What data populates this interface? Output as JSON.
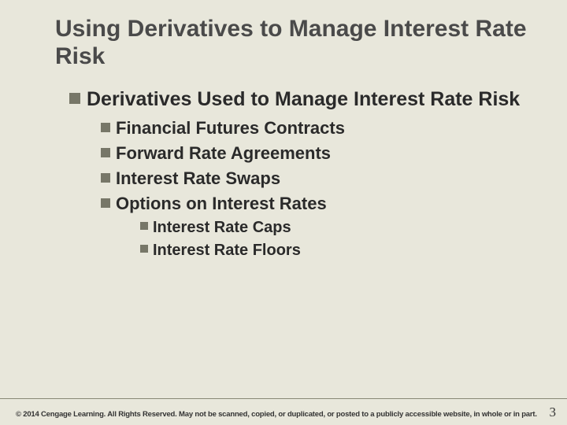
{
  "colors": {
    "background": "#e8e7db",
    "title_color": "#4a4a4a",
    "body_color": "#2a2a2a",
    "bullet_color": "#777768",
    "rule_color": "#888876"
  },
  "typography": {
    "title_fontsize": 30,
    "lvl1_fontsize": 25,
    "lvl2_fontsize": 22,
    "lvl3_fontsize": 20,
    "copyright_fontsize": 9.5,
    "pagenum_fontsize": 17,
    "font_family": "Arial",
    "weight": "bold"
  },
  "title": "Using Derivatives to Manage Interest Rate Risk",
  "lvl1": {
    "text": "Derivatives Used to Manage Interest Rate Risk"
  },
  "lvl2": [
    {
      "text": "Financial Futures Contracts"
    },
    {
      "text": "Forward Rate Agreements"
    },
    {
      "text": "Interest Rate Swaps"
    },
    {
      "text": "Options on Interest Rates"
    }
  ],
  "lvl3": [
    {
      "text": "Interest Rate Caps"
    },
    {
      "text": "Interest Rate Floors"
    }
  ],
  "copyright": "© 2014 Cengage Learning. All Rights Reserved. May not be scanned, copied, or duplicated, or posted to a publicly accessible website, in whole or in part.",
  "page_number": "3"
}
